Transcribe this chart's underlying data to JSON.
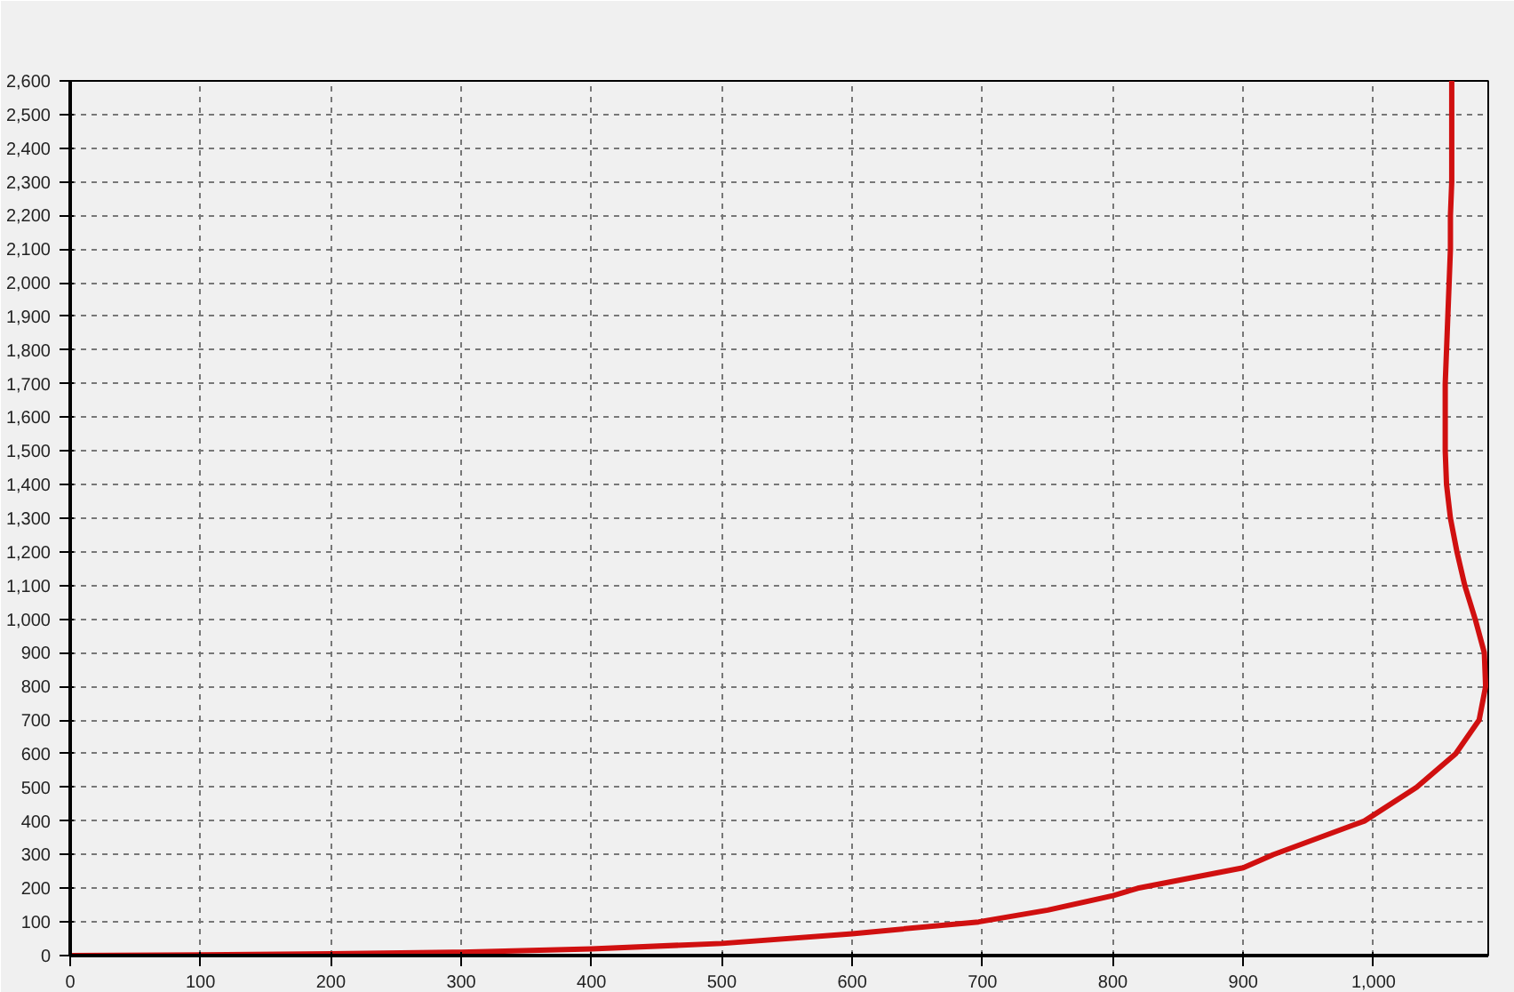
{
  "chart_data": {
    "type": "line",
    "x": [
      0,
      100,
      200,
      300,
      400,
      500,
      600,
      697,
      750,
      800,
      819,
      900,
      923,
      993,
      1033,
      1063,
      1081,
      1086,
      1085,
      1078,
      1070,
      1064,
      1059,
      1056,
      1055,
      1055,
      1055,
      1056,
      1057,
      1058,
      1059,
      1059,
      1060,
      1060,
      1060,
      1060
    ],
    "series": [
      {
        "color": "#d01010",
        "values": [
          0,
          2,
          5,
          10,
          20,
          36,
          65,
          100,
          135,
          178,
          200,
          261,
          300,
          400,
          500,
          600,
          700,
          800,
          900,
          1000,
          1100,
          1200,
          1300,
          1400,
          1500,
          1600,
          1700,
          1800,
          1900,
          2000,
          2100,
          2200,
          2300,
          2400,
          2500,
          2600
        ]
      }
    ],
    "xlim": [
      0,
      1088
    ],
    "ylim": [
      0,
      2600
    ],
    "xticks": [
      0,
      100,
      200,
      300,
      400,
      500,
      600,
      700,
      800,
      900,
      {
        "value": 1000,
        "label": "1,000"
      }
    ],
    "yticks": [
      0,
      100,
      200,
      300,
      400,
      500,
      600,
      700,
      800,
      900,
      {
        "value": 1000,
        "label": "1,000"
      },
      {
        "value": 1100,
        "label": "1,100"
      },
      {
        "value": 1200,
        "label": "1,200"
      },
      {
        "value": 1300,
        "label": "1,300"
      },
      {
        "value": 1400,
        "label": "1,400"
      },
      {
        "value": 1500,
        "label": "1,500"
      },
      {
        "value": 1600,
        "label": "1,600"
      },
      {
        "value": 1700,
        "label": "1,700"
      },
      {
        "value": 1800,
        "label": "1,800"
      },
      {
        "value": 1900,
        "label": "1,900"
      },
      {
        "value": 2000,
        "label": "2,000"
      },
      {
        "value": 2100,
        "label": "2,100"
      },
      {
        "value": 2200,
        "label": "2,200"
      },
      {
        "value": 2300,
        "label": "2,300"
      },
      {
        "value": 2400,
        "label": "2,400"
      },
      {
        "value": 2500,
        "label": "2,500"
      },
      {
        "value": 2600,
        "label": "2,600"
      }
    ],
    "grid": true,
    "line_style": "solid"
  }
}
